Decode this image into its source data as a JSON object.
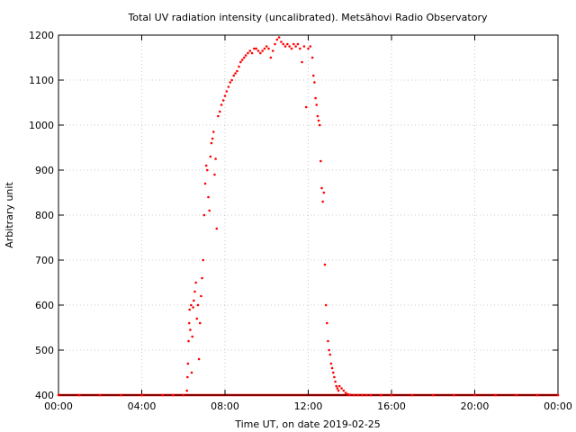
{
  "chart_data": {
    "type": "scatter",
    "title": "Total UV radiation intensity (uncalibrated). Metsähovi Radio Observatory",
    "xlabel": "Time UT, on date 2019-02-25",
    "ylabel": "Arbitrary unit",
    "xlim": [
      0,
      24
    ],
    "ylim": [
      400,
      1200
    ],
    "x_ticks": [
      0,
      4,
      8,
      12,
      16,
      20,
      24
    ],
    "x_tick_labels": [
      "00:00",
      "04:00",
      "08:00",
      "12:00",
      "16:00",
      "20:00",
      "00:00"
    ],
    "y_ticks": [
      400,
      500,
      600,
      700,
      800,
      900,
      1000,
      1100,
      1200
    ],
    "y_tick_labels": [
      "400",
      "500",
      "600",
      "700",
      "800",
      "900",
      "1000",
      "1100",
      "1200"
    ],
    "grid": true,
    "legend": "none",
    "series": [
      {
        "color": "#ff0000",
        "x": [
          6.17,
          6.2,
          6.22,
          6.25,
          6.28,
          6.3,
          6.33,
          6.37,
          6.4,
          6.43,
          6.47,
          6.5,
          6.55,
          6.6,
          6.65,
          6.7,
          6.75,
          6.8,
          6.85,
          6.9,
          6.95,
          7.0,
          7.05,
          7.1,
          7.15,
          7.2,
          7.25,
          7.3,
          7.35,
          7.4,
          7.45,
          7.5,
          7.55,
          7.6,
          7.67,
          7.75,
          7.83,
          7.92,
          8.0,
          8.08,
          8.17,
          8.25,
          8.33,
          8.42,
          8.5,
          8.58,
          8.67,
          8.75,
          8.83,
          8.92,
          9.0,
          9.1,
          9.2,
          9.3,
          9.4,
          9.5,
          9.6,
          9.7,
          9.8,
          9.9,
          10.0,
          10.1,
          10.2,
          10.3,
          10.4,
          10.5,
          10.6,
          10.7,
          10.8,
          10.9,
          11.0,
          11.1,
          11.2,
          11.3,
          11.4,
          11.5,
          11.6,
          11.7,
          11.8,
          11.9,
          12.0,
          12.1,
          12.2,
          12.25,
          12.3,
          12.35,
          12.4,
          12.45,
          12.5,
          12.55,
          12.6,
          12.65,
          12.7,
          12.75,
          12.8,
          12.85,
          12.9,
          12.95,
          13.0,
          13.05,
          13.1,
          13.15,
          13.2,
          13.25,
          13.3,
          13.35,
          13.4,
          13.45,
          13.5,
          13.6,
          13.7,
          13.8,
          13.9,
          14.0,
          14.2,
          14.4,
          14.6,
          14.8,
          15.0,
          15.5,
          16.0,
          17.0,
          18.0,
          19.0,
          20.0,
          21.0,
          22.0,
          23.0,
          24.0,
          0.0,
          1.0,
          2.0,
          3.0,
          4.0,
          5.0,
          5.5,
          6.0
        ],
        "y": [
          410,
          440,
          470,
          520,
          560,
          590,
          545,
          600,
          450,
          530,
          595,
          610,
          630,
          650,
          570,
          600,
          480,
          560,
          620,
          660,
          700,
          800,
          870,
          910,
          900,
          840,
          810,
          930,
          960,
          970,
          985,
          890,
          925,
          770,
          1020,
          1030,
          1045,
          1055,
          1065,
          1075,
          1085,
          1095,
          1100,
          1110,
          1115,
          1120,
          1130,
          1140,
          1145,
          1150,
          1155,
          1160,
          1165,
          1160,
          1170,
          1170,
          1165,
          1160,
          1165,
          1170,
          1175,
          1170,
          1150,
          1165,
          1180,
          1190,
          1195,
          1185,
          1180,
          1175,
          1180,
          1175,
          1170,
          1180,
          1175,
          1180,
          1170,
          1140,
          1175,
          1040,
          1170,
          1175,
          1150,
          1110,
          1095,
          1060,
          1045,
          1020,
          1010,
          1000,
          920,
          860,
          830,
          850,
          690,
          600,
          560,
          520,
          500,
          490,
          470,
          460,
          450,
          440,
          430,
          420,
          415,
          410,
          420,
          415,
          410,
          405,
          402,
          401,
          400,
          400,
          400,
          400,
          400,
          400,
          400,
          400,
          400,
          400,
          400,
          400,
          400,
          400,
          400,
          400,
          400,
          400,
          400,
          400,
          400,
          400,
          400
        ]
      }
    ]
  }
}
